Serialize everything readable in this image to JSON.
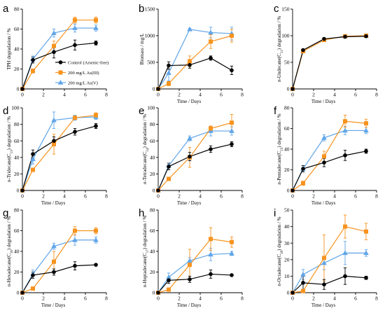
{
  "chart_data": [
    {
      "type": "line",
      "panel": "a",
      "ylabel": {
        "main": "TPH degradation / %"
      },
      "x": [
        0,
        1,
        3,
        5,
        7
      ],
      "xlim": [
        0,
        8
      ],
      "xticks": [
        0,
        2,
        4,
        6,
        8
      ],
      "ylim": [
        0,
        80
      ],
      "yticks": [
        0,
        20,
        40,
        60,
        80
      ],
      "legend": [
        {
          "name": "Control (Arsenic-free)",
          "color": "#000000",
          "marker": "circle"
        },
        {
          "name": "200 mg/L As(III)",
          "color": "#F7931E",
          "marker": "square"
        },
        {
          "name": "200 mg/L As(V)",
          "color": "#60A5E8",
          "marker": "triangle"
        }
      ],
      "series": [
        {
          "values": [
            0,
            29,
            37,
            44,
            46
          ],
          "err": [
            0,
            3,
            6,
            5,
            2
          ]
        },
        {
          "values": [
            0,
            18,
            43,
            69,
            69
          ],
          "err": [
            0,
            2,
            5,
            3,
            3
          ]
        },
        {
          "values": [
            0,
            30,
            56,
            61,
            61
          ],
          "err": [
            0,
            3,
            4,
            4,
            3
          ]
        }
      ]
    },
    {
      "type": "line",
      "panel": "b",
      "ylabel": {
        "main": "Biomass / mg/L"
      },
      "xlabel": "Time / Days",
      "x": [
        0,
        1,
        3,
        5,
        7
      ],
      "xlim": [
        0,
        8
      ],
      "xticks": [
        0,
        2,
        4,
        6,
        8
      ],
      "ylim": [
        0,
        1500
      ],
      "yticks": [
        0,
        500,
        1000,
        1500
      ],
      "series": [
        {
          "values": [
            0,
            440,
            450,
            580,
            350
          ],
          "err": [
            0,
            70,
            60,
            40,
            80
          ]
        },
        {
          "values": [
            0,
            100,
            520,
            890,
            1000
          ],
          "err": [
            0,
            40,
            100,
            130,
            120
          ]
        },
        {
          "values": [
            0,
            300,
            1120,
            1060,
            1040
          ],
          "err": [
            0,
            150,
            20,
            100,
            120
          ]
        }
      ]
    },
    {
      "type": "line",
      "panel": "c",
      "ylabel": {
        "italic": "n",
        "main": "-Undecane(C",
        "sub": "11",
        "tail": ") degradation / %"
      },
      "xlabel": "Time / Days",
      "x": [
        0,
        1,
        3,
        5,
        7
      ],
      "xlim": [
        0,
        8
      ],
      "xticks": [
        0,
        2,
        4,
        6,
        8
      ],
      "ylim": [
        0,
        150
      ],
      "yticks": [
        0,
        50,
        100,
        150
      ],
      "series": [
        {
          "values": [
            0,
            73,
            94,
            98,
            99
          ],
          "err": [
            0,
            2,
            2,
            2,
            2
          ]
        },
        {
          "values": [
            0,
            71,
            92,
            99,
            100
          ],
          "err": [
            0,
            2,
            2,
            2,
            2
          ]
        },
        {
          "values": [
            0,
            72,
            93,
            99,
            100
          ],
          "err": [
            0,
            2,
            2,
            2,
            2
          ]
        }
      ]
    },
    {
      "type": "line",
      "panel": "d",
      "ylabel": {
        "italic": "n",
        "main": "-Tridecane(C",
        "sub": "13",
        "tail": ") degradation / %"
      },
      "xlabel": "Time / Days",
      "x": [
        0,
        1,
        3,
        5,
        7
      ],
      "xlim": [
        0,
        8
      ],
      "xticks": [
        0,
        2,
        4,
        6,
        8
      ],
      "ylim": [
        0,
        100
      ],
      "yticks": [
        0,
        20,
        40,
        60,
        80,
        100
      ],
      "series": [
        {
          "values": [
            0,
            44,
            60,
            71,
            78
          ],
          "err": [
            0,
            5,
            5,
            4,
            3
          ]
        },
        {
          "values": [
            0,
            25,
            56,
            88,
            91
          ],
          "err": [
            0,
            2,
            12,
            2,
            3
          ]
        },
        {
          "values": [
            0,
            38,
            85,
            88,
            89
          ],
          "err": [
            0,
            6,
            10,
            3,
            3
          ]
        }
      ]
    },
    {
      "type": "line",
      "panel": "e",
      "ylabel": {
        "italic": "n",
        "main": "-Tetradecane(C",
        "sub": "14",
        "tail": ") degradation / %"
      },
      "xlabel": "Time / Days",
      "x": [
        0,
        1,
        3,
        5,
        7
      ],
      "xlim": [
        0,
        8
      ],
      "xticks": [
        0,
        2,
        4,
        6,
        8
      ],
      "ylim": [
        0,
        100
      ],
      "yticks": [
        0,
        20,
        40,
        60,
        80,
        100
      ],
      "series": [
        {
          "values": [
            0,
            29,
            41,
            50,
            56
          ],
          "err": [
            0,
            4,
            5,
            4,
            3
          ]
        },
        {
          "values": [
            0,
            14,
            40,
            75,
            82
          ],
          "err": [
            0,
            2,
            12,
            3,
            10
          ]
        },
        {
          "values": [
            0,
            30,
            63,
            72,
            72
          ],
          "err": [
            0,
            3,
            3,
            6,
            5
          ]
        }
      ]
    },
    {
      "type": "line",
      "panel": "f",
      "ylabel": {
        "italic": "n",
        "main": "-Pentadecane(C",
        "sub": "15",
        "tail": ") degradation / %"
      },
      "xlabel": "Time / Days",
      "x": [
        0,
        1,
        3,
        5,
        7
      ],
      "xlim": [
        0,
        8
      ],
      "xticks": [
        0,
        2,
        4,
        6,
        8
      ],
      "ylim": [
        0,
        80
      ],
      "yticks": [
        0,
        20,
        40,
        60,
        80
      ],
      "series": [
        {
          "values": [
            0,
            21,
            27,
            34,
            38
          ],
          "err": [
            0,
            3,
            4,
            5,
            2
          ]
        },
        {
          "values": [
            0,
            7,
            33,
            67,
            65
          ],
          "err": [
            0,
            2,
            5,
            6,
            4
          ]
        },
        {
          "values": [
            0,
            21,
            51,
            58,
            58
          ],
          "err": [
            0,
            3,
            3,
            4,
            3
          ]
        }
      ]
    },
    {
      "type": "line",
      "panel": "g",
      "ylabel": {
        "italic": "n",
        "main": "-Hexadecane(C",
        "sub": "16",
        "tail": ") degradation / %"
      },
      "xlabel": "Time / Days",
      "x": [
        0,
        1,
        3,
        5,
        7
      ],
      "xlim": [
        0,
        8
      ],
      "xticks": [
        0,
        2,
        4,
        6,
        8
      ],
      "ylim": [
        0,
        80
      ],
      "yticks": [
        0,
        20,
        40,
        60,
        80
      ],
      "series": [
        {
          "values": [
            0,
            17,
            20,
            26,
            27
          ],
          "err": [
            0,
            3,
            3,
            4,
            1
          ]
        },
        {
          "values": [
            0,
            4,
            30,
            60,
            60
          ],
          "err": [
            0,
            1,
            10,
            4,
            3
          ]
        },
        {
          "values": [
            0,
            18,
            45,
            51,
            51
          ],
          "err": [
            0,
            4,
            3,
            5,
            3
          ]
        }
      ]
    },
    {
      "type": "line",
      "panel": "h",
      "ylabel": {
        "italic": "n",
        "main": "-Heptadecane(C",
        "sub": "17",
        "tail": ") degradation / %"
      },
      "xlabel": "Time / Days",
      "x": [
        0,
        1,
        3,
        5,
        7
      ],
      "xlim": [
        0,
        8
      ],
      "xticks": [
        0,
        2,
        4,
        6,
        8
      ],
      "ylim": [
        0,
        80
      ],
      "yticks": [
        0,
        20,
        40,
        60,
        80
      ],
      "series": [
        {
          "values": [
            0,
            12,
            13,
            18,
            17
          ],
          "err": [
            0,
            3,
            3,
            4,
            1
          ]
        },
        {
          "values": [
            0,
            3,
            27,
            52,
            49
          ],
          "err": [
            0,
            1,
            15,
            11,
            5
          ]
        },
        {
          "values": [
            0,
            15,
            31,
            37,
            38
          ],
          "err": [
            0,
            4,
            3,
            6,
            2
          ]
        }
      ]
    },
    {
      "type": "line",
      "panel": "i",
      "ylabel": {
        "italic": "n",
        "main": "-Octadecane(C",
        "sub": "18",
        "tail": ") degradation / %"
      },
      "xlabel": "Time / Days",
      "x": [
        0,
        1,
        3,
        5,
        7
      ],
      "xlim": [
        0,
        8
      ],
      "xticks": [
        0,
        2,
        4,
        6,
        8
      ],
      "ylim": [
        0,
        50
      ],
      "yticks": [
        0,
        10,
        20,
        30,
        40,
        50
      ],
      "series": [
        {
          "values": [
            0,
            6,
            5,
            10,
            9
          ],
          "err": [
            0,
            4,
            3,
            5,
            1
          ]
        },
        {
          "values": [
            0,
            1,
            21,
            40,
            37
          ],
          "err": [
            0,
            1,
            14,
            7,
            5
          ]
        },
        {
          "values": [
            0,
            11,
            18,
            24,
            24
          ],
          "err": [
            0,
            3,
            4,
            7,
            2
          ]
        }
      ]
    }
  ]
}
